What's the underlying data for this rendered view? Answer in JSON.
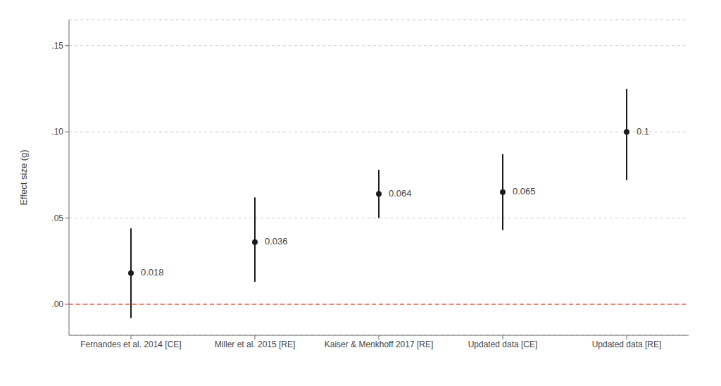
{
  "chart_data": {
    "type": "scatter",
    "categories": [
      "Fernandes et al. 2014 [CE]",
      "Miller et al. 2015 [RE]",
      "Kaiser & Menkhoff 2017 [RE]",
      "Updated data [CE]",
      "Updated data [RE]"
    ],
    "values": [
      0.018,
      0.036,
      0.064,
      0.065,
      0.1
    ],
    "ci_lower": [
      -0.008,
      0.013,
      0.05,
      0.043,
      0.072
    ],
    "ci_upper": [
      0.044,
      0.062,
      0.078,
      0.087,
      0.125
    ],
    "color": "#1a1a1a",
    "data_labels": true,
    "ylabel": "Effect size (g)",
    "ylim": [
      -0.018,
      0.165
    ],
    "yticks": [
      {
        "value": 0.0,
        "label": ".00"
      },
      {
        "value": 0.05,
        "label": ".05"
      },
      {
        "value": 0.1,
        "label": ".10"
      },
      {
        "value": 0.15,
        "label": ".15"
      }
    ],
    "grid": true,
    "reference_line": {
      "y": 0.0,
      "color": "#E8604A"
    }
  }
}
